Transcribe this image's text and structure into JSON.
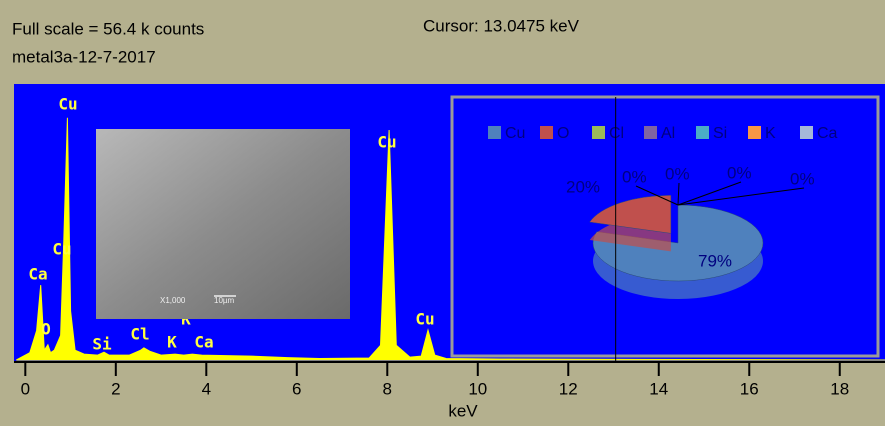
{
  "chart_data": [
    {
      "type": "area",
      "title": "Full scale = 56.4 k counts",
      "subtitle": "metal3a-12-7-2017",
      "cursor_label": "Cursor: 13.0475 keV",
      "cursor": 13.0475,
      "xlabel": "keV",
      "x": [
        -0.2,
        0.1,
        0.25,
        0.34,
        0.42,
        0.5,
        0.56,
        0.64,
        0.78,
        0.85,
        0.93,
        1.0,
        1.1,
        1.3,
        1.6,
        1.74,
        1.85,
        2.3,
        2.55,
        2.62,
        2.75,
        3.0,
        3.31,
        3.5,
        3.69,
        3.9,
        5.0,
        5.8,
        6.5,
        7.6,
        7.85,
        8.04,
        8.2,
        8.5,
        8.75,
        8.9,
        9.05,
        9.3,
        10.5,
        19
      ],
      "series": [
        {
          "name": "spectrum",
          "color": "#ffff00",
          "values": [
            0,
            1.5,
            6,
            15.3,
            2,
            3.1,
            1.5,
            2,
            5,
            24.5,
            49.5,
            10,
            2,
            1.2,
            1,
            1.6,
            1,
            1,
            2,
            2.5,
            1.8,
            1,
            1.2,
            1,
            1.2,
            1,
            0.8,
            0.5,
            0.3,
            0.4,
            3,
            47,
            3,
            0.6,
            0.8,
            6.1,
            1,
            0.3,
            0.2,
            0
          ]
        }
      ],
      "peak_labels": [
        "Cu",
        "Ca",
        "Cu",
        "O",
        "Si",
        "Cl",
        "K",
        "K",
        "Ca",
        "Cu",
        "Cu"
      ],
      "image_caption": [
        "X1,000",
        "10µm"
      ],
      "xlim": [
        -0.25,
        19
      ],
      "ylim": [
        0,
        56.4
      ],
      "xticks": [
        0,
        2,
        4,
        6,
        8,
        10,
        12,
        14,
        16,
        18
      ]
    },
    {
      "type": "pie",
      "categories": [
        "Cu",
        "O",
        "Cl",
        "Al",
        "Si",
        "K",
        "Ca"
      ],
      "values": [
        79,
        20,
        0,
        0,
        0,
        0,
        0
      ],
      "value_labels": [
        "79%",
        "20%",
        "0%",
        "0%",
        "0%",
        "0%",
        "0%"
      ],
      "colors": [
        "#4f81bd",
        "#c0504d",
        "#9bbb59",
        "#8064a2",
        "#4bacc6",
        "#f79646",
        "#a5b8d9"
      ]
    }
  ]
}
